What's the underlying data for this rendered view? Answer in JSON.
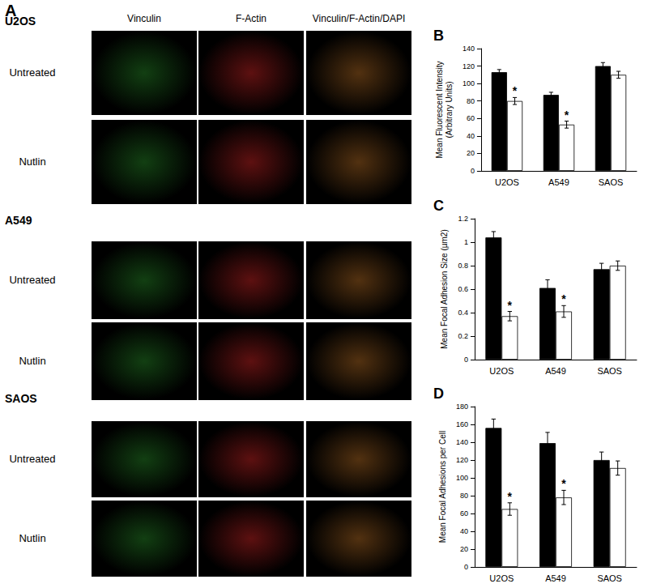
{
  "panel_a": {
    "label": "A",
    "columns": [
      "Vinculin",
      "F-Actin",
      "Vinculin/F-Actin/DAPI"
    ],
    "cell_lines": [
      {
        "name": "U2OS",
        "rows": [
          "Untreated",
          "Nutlin"
        ]
      },
      {
        "name": "A549",
        "rows": [
          "Untreated",
          "Nutlin"
        ]
      },
      {
        "name": "SAOS",
        "rows": [
          "Untreated",
          "Nutlin"
        ]
      }
    ]
  },
  "chart_data": [
    {
      "type": "bar",
      "title": "B",
      "y_label": "Mean Fluorescent Intensity\n(Arbitrary Units)",
      "categories": [
        "U2OS",
        "A549",
        "SAOS"
      ],
      "series": [
        {
          "color": "#000000",
          "values": [
            113,
            87,
            120
          ],
          "errors": [
            3,
            3,
            4
          ]
        },
        {
          "color": "#ffffff",
          "values": [
            80,
            53,
            110
          ],
          "errors": [
            4,
            4,
            4
          ]
        }
      ],
      "ylim": [
        0,
        140
      ],
      "yticks": [
        0,
        20,
        40,
        60,
        80,
        100,
        120,
        140
      ],
      "grid": false,
      "annotations": [
        {
          "text": "*",
          "category": "U2OS",
          "series": 1
        },
        {
          "text": "*",
          "category": "A549",
          "series": 1
        }
      ]
    },
    {
      "type": "bar",
      "title": "C",
      "y_label": "Mean Focal Adhesion Size (µm2)",
      "categories": [
        "U2OS",
        "A549",
        "SAOS"
      ],
      "series": [
        {
          "color": "#000000",
          "values": [
            1.04,
            0.61,
            0.77
          ],
          "errors": [
            0.05,
            0.07,
            0.05
          ]
        },
        {
          "color": "#ffffff",
          "values": [
            0.37,
            0.41,
            0.8
          ],
          "errors": [
            0.04,
            0.05,
            0.04
          ]
        }
      ],
      "ylim": [
        0,
        1.2
      ],
      "yticks": [
        0,
        0.2,
        0.4,
        0.6,
        0.8,
        1,
        1.2
      ],
      "grid": false,
      "annotations": [
        {
          "text": "*",
          "category": "U2OS",
          "series": 1
        },
        {
          "text": "*",
          "category": "A549",
          "series": 1
        }
      ]
    },
    {
      "type": "bar",
      "title": "D",
      "y_label": "Mean Focal Adhesions per Cell",
      "categories": [
        "U2OS",
        "A549",
        "SAOS"
      ],
      "series": [
        {
          "color": "#000000",
          "values": [
            156,
            139,
            120
          ],
          "errors": [
            10,
            12,
            9
          ]
        },
        {
          "color": "#ffffff",
          "values": [
            65,
            78,
            111
          ],
          "errors": [
            7,
            8,
            8
          ]
        }
      ],
      "ylim": [
        0,
        180
      ],
      "yticks": [
        0,
        20,
        40,
        60,
        80,
        100,
        120,
        140,
        160,
        180
      ],
      "grid": false,
      "annotations": [
        {
          "text": "*",
          "category": "U2OS",
          "series": 1
        },
        {
          "text": "*",
          "category": "A549",
          "series": 1
        }
      ]
    }
  ]
}
